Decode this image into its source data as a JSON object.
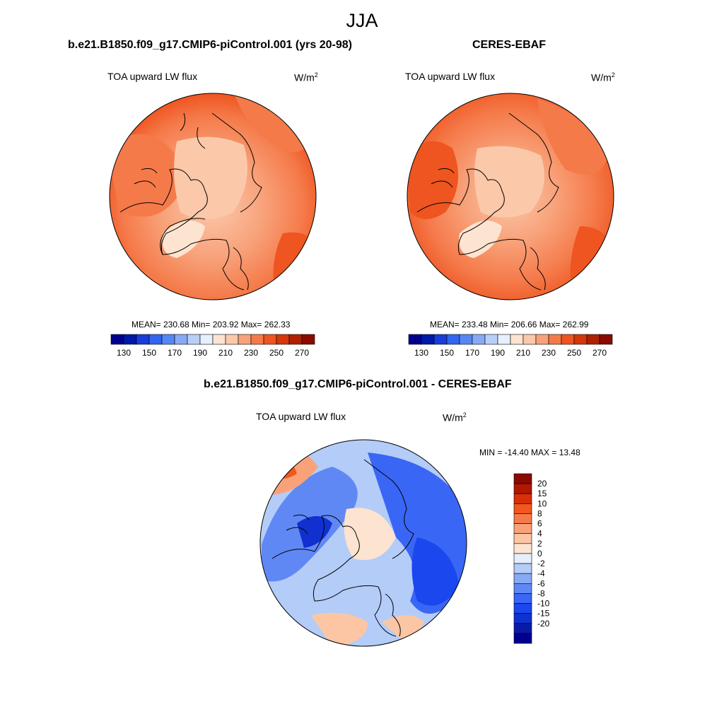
{
  "figure": {
    "season": "JJA",
    "unit_base": "W/m",
    "unit_exp": "2",
    "variable": "TOA upward LW flux"
  },
  "panels": {
    "model": {
      "title": "b.e21.B1850.f09_g17.CMIP6-piControl.001 (yrs 20-98)",
      "stats": "MEAN= 230.68  Min= 203.92  Max= 262.33"
    },
    "obs": {
      "title": "CERES-EBAF",
      "stats": "MEAN= 233.48  Min= 206.66  Max= 262.99"
    },
    "diff": {
      "title": "b.e21.B1850.f09_g17.CMIP6-piControl.001 - CERES-EBAF",
      "stats": "MIN = -14.40 MAX =  13.48"
    }
  },
  "colorbars": {
    "absolute": {
      "colors": [
        "#00008c",
        "#0019a8",
        "#1a3cd8",
        "#3366ee",
        "#5588f5",
        "#88aaf5",
        "#b8d0f8",
        "#e6f0ff",
        "#fde4d0",
        "#fbc8aa",
        "#f8a27a",
        "#f57a4a",
        "#ee5520",
        "#d43808",
        "#b02000",
        "#8a0a00"
      ],
      "tick_labels": [
        "130",
        "150",
        "170",
        "190",
        "210",
        "230",
        "250",
        "270"
      ]
    },
    "diff": {
      "colors": [
        "#000090",
        "#0a1aa8",
        "#1030d0",
        "#1a48ee",
        "#3a66f5",
        "#6088f5",
        "#88aaf5",
        "#b4ccf8",
        "#e6eefc",
        "#fde4d0",
        "#fcc6a4",
        "#f9a27a",
        "#f77a4a",
        "#f3561e",
        "#d83008",
        "#b01800",
        "#8a0a00"
      ],
      "tick_labels": [
        "20",
        "15",
        "10",
        "8",
        "6",
        "4",
        "2",
        "0",
        "-2",
        "-4",
        "-6",
        "-8",
        "-10",
        "-15",
        "-20"
      ]
    }
  }
}
